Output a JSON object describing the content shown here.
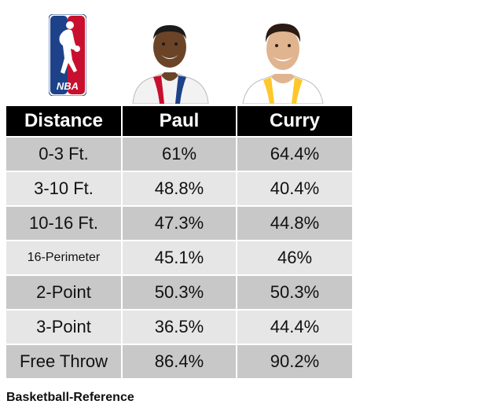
{
  "chart_data": {
    "type": "table",
    "columns": [
      "Distance",
      "Paul",
      "Curry"
    ],
    "rows": [
      {
        "distance": "0-3 Ft.",
        "paul": "61%",
        "curry": "64.4%"
      },
      {
        "distance": "3-10 Ft.",
        "paul": "48.8%",
        "curry": "40.4%"
      },
      {
        "distance": "10-16 Ft.",
        "paul": "47.3%",
        "curry": "44.8%"
      },
      {
        "distance": "16-Perimeter",
        "paul": "45.1%",
        "curry": "46%"
      },
      {
        "distance": "2-Point",
        "paul": "50.3%",
        "curry": "50.3%"
      },
      {
        "distance": "3-Point",
        "paul": "36.5%",
        "curry": "44.4%"
      },
      {
        "distance": "Free Throw",
        "paul": "86.4%",
        "curry": "90.2%"
      }
    ]
  },
  "logo": {
    "text": "NBA",
    "colors": {
      "blue": "#1d428a",
      "red": "#c8102e"
    }
  },
  "source": "Basketball-Reference"
}
